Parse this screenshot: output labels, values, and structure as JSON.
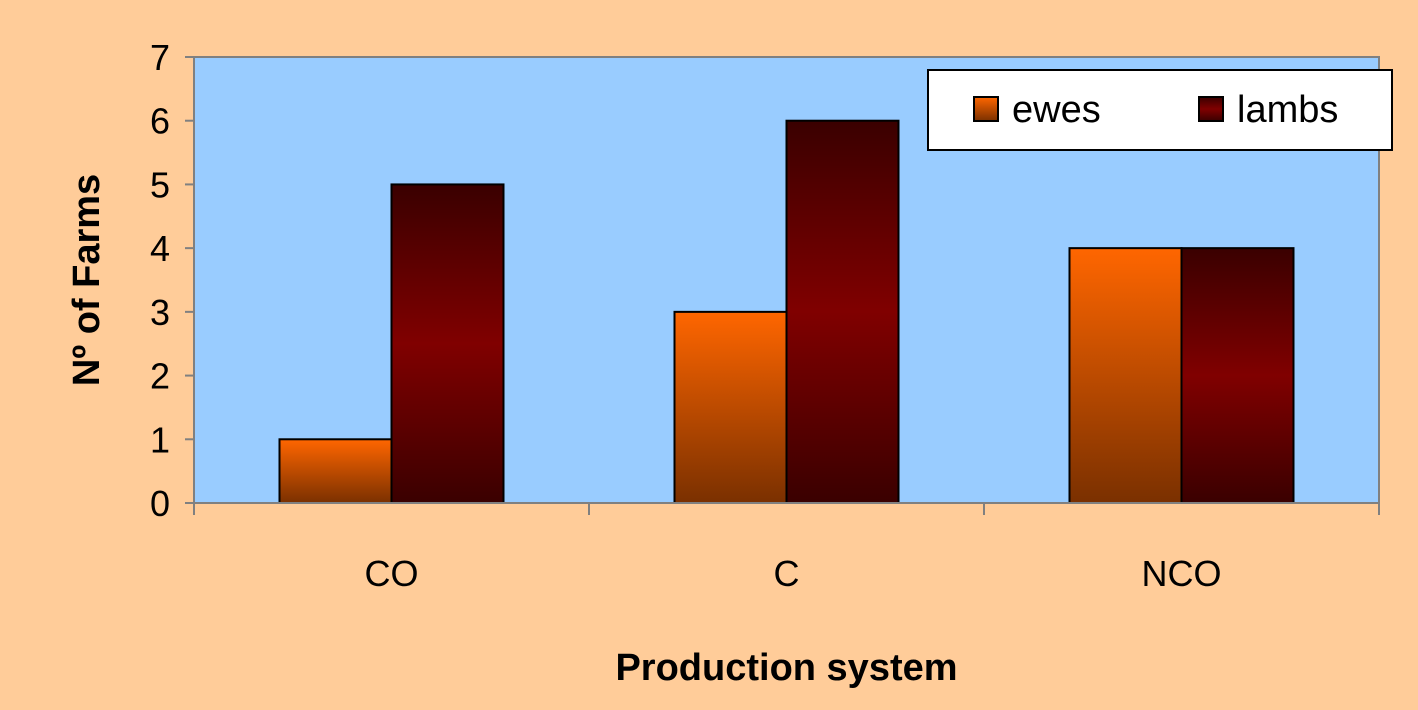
{
  "colors": {
    "background": "#ffcc99",
    "plot_area": "#99ccff",
    "ewes_top": "#ff6600",
    "ewes_bottom": "#7a3000",
    "lambs_mid": "#800000",
    "lambs_edge": "#3a0000",
    "axis": "#808080"
  },
  "chart_data": {
    "type": "bar",
    "categories": [
      "CO",
      "C",
      "NCO"
    ],
    "series": [
      {
        "name": "ewes",
        "values": [
          1,
          3,
          4
        ]
      },
      {
        "name": "lambs",
        "values": [
          5,
          6,
          4
        ]
      }
    ],
    "xlabel": "Production system",
    "ylabel": "Nº of Farms",
    "ylim": [
      0,
      7
    ],
    "yticks": [
      0,
      1,
      2,
      3,
      4,
      5,
      6,
      7
    ],
    "grid": false,
    "legend_position": "top-right"
  }
}
